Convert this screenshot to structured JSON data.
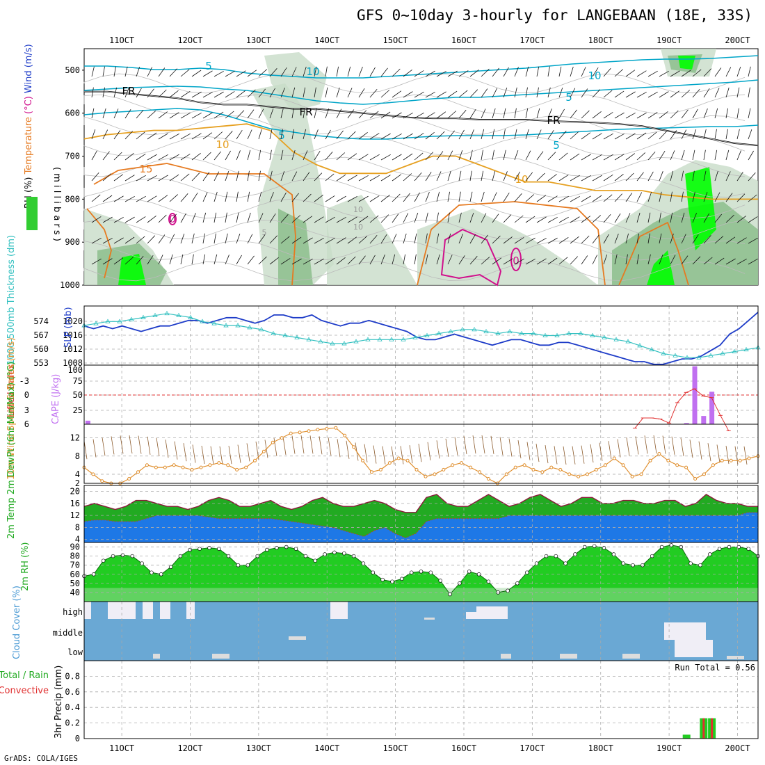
{
  "title": "GFS 0~10day 3-hourly for LANGEBAAN (18E, 33S)",
  "footer": "GrADS: COLA/IGES",
  "colors": {
    "wind_contour": "#00a5c8",
    "freezing": "#000000",
    "temp_10": "#e6a020",
    "temp_15": "#e67a20",
    "temp_20": "#d0108c",
    "rh_light": "#c8dcc8",
    "rh_mid": "#90c090",
    "rh_strong": "#32cd32",
    "rh_max": "#00ff00",
    "slp": "#1e3cc8",
    "thickness": "#33c0c0",
    "lifted": "#e03030",
    "cape": "#c070f0",
    "wind10m": "#e09030",
    "barbs": "#8b5a2b",
    "temp_fill": "#22aa22",
    "dew_fill": "#1e78e6",
    "rh_fill": "#22cc22",
    "cloud": "#6aa8d4",
    "cloud_clear": "#f0eef6",
    "precip_total": "#22cc22",
    "precip_conv": "#e03030"
  },
  "chart_data": [
    {
      "type": "heatmap",
      "name": "upper-air cross section",
      "x_ticks": [
        "11OCT",
        "12OCT",
        "13OCT",
        "14OCT",
        "15OCT",
        "16OCT",
        "17OCT",
        "18OCT",
        "19OCT",
        "20OCT"
      ],
      "ylabel_parts": [
        "RH (%)",
        "Temperature",
        "(°C)",
        "Wind (m/s)",
        "( m i l l i b a r s )"
      ],
      "y_ticks": [
        500,
        600,
        700,
        800,
        900,
        1000
      ],
      "ylim": [
        450,
        1000
      ],
      "contour_labels": [
        "5",
        "10",
        "10",
        "5",
        "5",
        "FR",
        "FR",
        "FR",
        "10",
        "15",
        "10",
        "5",
        "10",
        "10",
        "5",
        "0",
        "0"
      ],
      "freezing_level_mb": [
        550,
        550,
        555,
        560,
        565,
        575,
        580,
        580,
        585,
        590,
        590,
        595,
        600,
        605,
        610,
        612,
        612,
        615,
        615,
        615,
        618,
        620,
        622,
        625,
        630,
        640,
        650,
        660,
        670,
        675
      ],
      "temp10_level_mb": [
        660,
        650,
        645,
        640,
        640,
        635,
        630,
        625,
        640,
        690,
        720,
        740,
        740,
        740,
        720,
        700,
        700,
        720,
        740,
        760,
        760,
        770,
        780,
        780,
        780,
        790,
        795,
        800,
        800,
        800
      ]
    },
    {
      "type": "line",
      "name": "pressure & thickness",
      "ylabel_left": "1000-500mb Thickness (dm)",
      "ylabel_right": "SLP (mb)",
      "left_ticks": [
        "574",
        "567",
        "560",
        "553"
      ],
      "right_ticks": [
        "1020",
        "1016",
        "1012",
        "1008"
      ],
      "series": [
        {
          "name": "SLP",
          "values": [
            1019,
            1018,
            1019,
            1018,
            1019,
            1018,
            1017,
            1018,
            1019,
            1019,
            1020,
            1021,
            1021,
            1020,
            1021,
            1022,
            1022,
            1021,
            1020,
            1021,
            1023,
            1023,
            1022,
            1022,
            1023,
            1021,
            1020,
            1019,
            1020,
            1020,
            1021,
            1020,
            1019,
            1018,
            1017,
            1015,
            1014,
            1014,
            1015,
            1016,
            1015,
            1014,
            1013,
            1012,
            1013,
            1014,
            1014,
            1013,
            1012,
            1012,
            1013,
            1013,
            1012,
            1011,
            1010,
            1009,
            1008,
            1007,
            1006,
            1006,
            1005,
            1005,
            1006,
            1007,
            1007,
            1008,
            1010,
            1012,
            1016,
            1018,
            1021,
            1024
          ]
        },
        {
          "name": "Thickness",
          "values": [
            570,
            571,
            572,
            572,
            573,
            574,
            575,
            576,
            575,
            574,
            572,
            571,
            570,
            570,
            569,
            568,
            566,
            565,
            564,
            563,
            562,
            561,
            561,
            562,
            563,
            563,
            563,
            563,
            564,
            565,
            566,
            567,
            568,
            568,
            567,
            566,
            567,
            566,
            566,
            565,
            565,
            566,
            566,
            565,
            564,
            563,
            562,
            560,
            558,
            556,
            555,
            554,
            554,
            555,
            556,
            557,
            558,
            559
          ]
        }
      ],
      "ylim": [
        1006,
        1025
      ]
    },
    {
      "type": "bar",
      "name": "CAPE & lifted index",
      "ylabel_left": "Lifted Index",
      "ylabel_right": "CAPE (J/kg)",
      "left_ticks": [
        "-3",
        "0",
        "3",
        "6"
      ],
      "right_ticks": [
        "100",
        "75",
        "50",
        "25"
      ],
      "cape_bars": [
        {
          "time": 10.5,
          "value": 6
        },
        {
          "time": 19.25,
          "value": 2
        },
        {
          "time": 19.37,
          "value": 98
        },
        {
          "time": 19.5,
          "value": 14
        },
        {
          "time": 19.62,
          "value": 55
        }
      ],
      "lifted_index": [
        {
          "time": 18.5,
          "value": 6.5
        },
        {
          "time": 18.62,
          "value": 4.5
        },
        {
          "time": 18.75,
          "value": 4.5
        },
        {
          "time": 18.87,
          "value": 4.7
        },
        {
          "time": 19.0,
          "value": 5.5
        },
        {
          "time": 19.12,
          "value": 1.5
        },
        {
          "time": 19.25,
          "value": -0.5
        },
        {
          "time": 19.37,
          "value": -1.2
        },
        {
          "time": 19.5,
          "value": 0.2
        },
        {
          "time": 19.62,
          "value": 0.5
        },
        {
          "time": 19.75,
          "value": 4.0
        },
        {
          "time": 19.87,
          "value": 7.0
        }
      ],
      "ylim_cape": [
        0,
        100
      ]
    },
    {
      "type": "line",
      "name": "10m wind",
      "ylabel": "10m Wind Speed & Barbs (m/s)",
      "y_ticks": [
        "12",
        "8",
        "4",
        "2"
      ],
      "series": [
        {
          "name": "Speed",
          "values": [
            5.5,
            4,
            2.5,
            2,
            2,
            3,
            4.5,
            6,
            5.5,
            5.5,
            6,
            5.5,
            5,
            5.5,
            6,
            6.5,
            6,
            5,
            5.5,
            7,
            9,
            11,
            12,
            13,
            13.2,
            13.5,
            13.8,
            14,
            14.2,
            12.5,
            10,
            7,
            4.5,
            5,
            6.5,
            7.5,
            7,
            5,
            3.5,
            4,
            5,
            6,
            6.5,
            5.5,
            4.5,
            3,
            2,
            4,
            5.5,
            6,
            5,
            4.5,
            5.5,
            5,
            4,
            3.5,
            4,
            5,
            6,
            7.5,
            6,
            3.5,
            4,
            7,
            8.5,
            7,
            6,
            5.5,
            3,
            4,
            6,
            7,
            7,
            7,
            7.5,
            8
          ]
        }
      ],
      "ylim": [
        2,
        15
      ]
    },
    {
      "type": "area",
      "name": "2m temp & dewpoint",
      "ylabel": "2m Temp 2m DewPt (6hr Min/Max) (°C)",
      "y_ticks": [
        "20",
        "16",
        "12",
        "8",
        "4"
      ],
      "series": [
        {
          "name": "Temp",
          "values": [
            15,
            16,
            15,
            14,
            15,
            17,
            17,
            16,
            15,
            15,
            14,
            15,
            17,
            18,
            17,
            15,
            15,
            16,
            17,
            15,
            14,
            15,
            17,
            18,
            16,
            15,
            15,
            16,
            17,
            16,
            14,
            13,
            13,
            18,
            19,
            16,
            15,
            15,
            17,
            19,
            17,
            15,
            16,
            18,
            19,
            17,
            15,
            16,
            18,
            18,
            16,
            16,
            17,
            17,
            16,
            16,
            17,
            17,
            15,
            16,
            19,
            17,
            16,
            16,
            15,
            15
          ]
        },
        {
          "name": "DewPt",
          "values": [
            10,
            10.5,
            10.5,
            10,
            10,
            10,
            11,
            12,
            12,
            12,
            12,
            12,
            11.5,
            11,
            11,
            11,
            11,
            11,
            11,
            10.5,
            10,
            9.5,
            9,
            8.5,
            8,
            7,
            6,
            5,
            7,
            8,
            6,
            4.5,
            6,
            10,
            11,
            11,
            11,
            11,
            11,
            11,
            11,
            12,
            12,
            12,
            12,
            12,
            12,
            12,
            12,
            12,
            12,
            12,
            12,
            12,
            12,
            12,
            12,
            12,
            12,
            12,
            12,
            12,
            12,
            12,
            13,
            13
          ]
        }
      ],
      "ylim": [
        3,
        22
      ]
    },
    {
      "type": "area",
      "name": "2m relative humidity",
      "ylabel": "2m RH (%)",
      "y_ticks": [
        "90",
        "80",
        "70",
        "60",
        "50",
        "40"
      ],
      "series": [
        {
          "name": "RH",
          "values": [
            58,
            60,
            75,
            80,
            81,
            80,
            72,
            62,
            60,
            68,
            80,
            87,
            88,
            89,
            88,
            80,
            70,
            70,
            80,
            87,
            89,
            90,
            88,
            80,
            75,
            82,
            84,
            83,
            80,
            72,
            62,
            54,
            52,
            55,
            62,
            63,
            62,
            53,
            38,
            50,
            63,
            60,
            52,
            40,
            42,
            50,
            62,
            72,
            80,
            80,
            72,
            82,
            90,
            91,
            89,
            82,
            72,
            70,
            70,
            80,
            90,
            92,
            90,
            72,
            70,
            82,
            88,
            90,
            90,
            88,
            80
          ]
        }
      ],
      "ylim": [
        30,
        95
      ]
    },
    {
      "type": "heatmap",
      "name": "cloud cover",
      "ylabel": "Cloud Cover (%)",
      "y_ticks": [
        "high",
        "middle",
        "low"
      ]
    },
    {
      "type": "bar",
      "name": "3hr precipitation",
      "ylabel_left": "Total / Rain",
      "ylabel_right": "Convective",
      "ylabel": "3hr Precip (mm)",
      "run_total": "Run Total = 0.56",
      "y_ticks": [
        "0.8",
        "0.6",
        "0.4",
        "0.2",
        "0"
      ],
      "bars": [
        {
          "time": 19.25,
          "value": 0.05
        },
        {
          "time": 19.5,
          "value": 0.26
        },
        {
          "time": 19.62,
          "value": 0.26
        }
      ],
      "ylim": [
        0,
        1.0
      ]
    }
  ]
}
